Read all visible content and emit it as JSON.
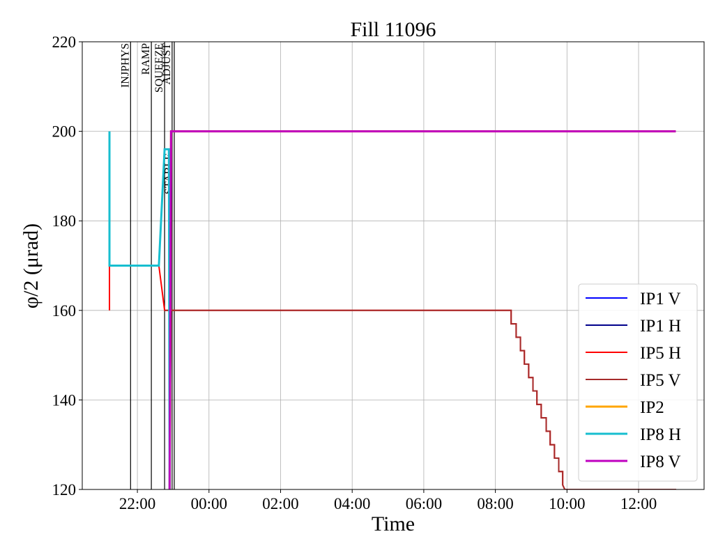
{
  "chart_data": {
    "type": "line",
    "title": "Fill 11096",
    "xlabel": "Time",
    "ylabel": "φ/2 (μrad)",
    "xlim": [
      -3.54,
      13.83
    ],
    "ylim": [
      120,
      220
    ],
    "xticks": [
      {
        "value": -2,
        "label": "22:00"
      },
      {
        "value": 0,
        "label": "00:00"
      },
      {
        "value": 2,
        "label": "02:00"
      },
      {
        "value": 4,
        "label": "04:00"
      },
      {
        "value": 6,
        "label": "06:00"
      },
      {
        "value": 8,
        "label": "08:00"
      },
      {
        "value": 10,
        "label": "10:00"
      },
      {
        "value": 12,
        "label": "12:00"
      }
    ],
    "yticks": [
      120,
      140,
      160,
      180,
      200,
      220
    ],
    "grid": true,
    "legend": "lower right",
    "phases": [
      {
        "label": "INJPHYS",
        "x": -2.19
      },
      {
        "label": "RAMP",
        "x": -1.61
      },
      {
        "label": "SQUEEZE",
        "x": -1.24
      },
      {
        "label": "ADJUST",
        "x": -1.03
      },
      {
        "label": "STABLE",
        "x": -0.97
      }
    ],
    "series": [
      {
        "name": "IP1 V",
        "color": "#0000ff",
        "linewidth": 2,
        "x": [
          -1.1,
          -1.06,
          13.04
        ],
        "values": [
          120,
          200,
          200
        ]
      },
      {
        "name": "IP1 H",
        "color": "#00008b",
        "linewidth": 2,
        "x": [
          -1.1,
          -1.06,
          13.04
        ],
        "values": [
          120,
          200,
          200
        ]
      },
      {
        "name": "IP5 H",
        "color": "#ff0000",
        "linewidth": 2,
        "x": [
          -2.78,
          -2.78,
          -1.4,
          -1.24,
          8.44,
          8.44,
          8.58,
          8.58,
          8.7,
          8.7,
          8.81,
          8.81,
          8.93,
          8.93,
          9.05,
          9.05,
          9.16,
          9.16,
          9.28,
          9.28,
          9.42,
          9.42,
          9.53,
          9.53,
          9.65,
          9.65,
          9.77,
          9.77,
          9.88,
          9.88,
          9.94,
          13.05
        ],
        "values": [
          160,
          170,
          170,
          160,
          160,
          157,
          157,
          154,
          154,
          151,
          151,
          148,
          148,
          145,
          145,
          142,
          142,
          139,
          139,
          136,
          136,
          133,
          133,
          130,
          130,
          127,
          127,
          124,
          124,
          121,
          120,
          120
        ]
      },
      {
        "name": "IP5 V",
        "color": "#a52a2a",
        "linewidth": 2,
        "x": [
          -1.24,
          -1.1,
          -1.1,
          -1.06,
          8.44,
          8.44,
          8.58,
          8.58,
          8.7,
          8.7,
          8.81,
          8.81,
          8.93,
          8.93,
          9.05,
          9.05,
          9.16,
          9.16,
          9.28,
          9.28,
          9.42,
          9.42,
          9.53,
          9.53,
          9.65,
          9.65,
          9.77,
          9.77,
          9.88,
          9.88,
          9.94,
          13.05
        ],
        "values": [
          160,
          160,
          120,
          160,
          160,
          157,
          157,
          154,
          154,
          151,
          151,
          148,
          148,
          145,
          145,
          142,
          142,
          139,
          139,
          136,
          136,
          133,
          133,
          130,
          130,
          127,
          127,
          124,
          124,
          121,
          120,
          120
        ]
      },
      {
        "name": "IP2",
        "color": "#ffa500",
        "linewidth": 3,
        "x": [
          -1.1,
          -1.06,
          13.04
        ],
        "values": [
          120,
          200,
          200
        ]
      },
      {
        "name": "IP8 H",
        "color": "#17becf",
        "linewidth": 3,
        "x": [
          -2.78,
          -2.78,
          -1.4,
          -1.24,
          -1.12,
          -1.1
        ],
        "values": [
          200,
          170,
          170,
          196,
          196,
          120
        ]
      },
      {
        "name": "IP8 V",
        "color": "#bf00bf",
        "linewidth": 3,
        "x": [
          -1.1,
          -1.06,
          13.04
        ],
        "values": [
          120,
          200,
          200
        ]
      }
    ]
  }
}
